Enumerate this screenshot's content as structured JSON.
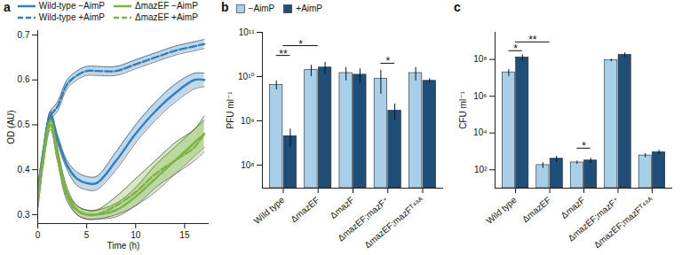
{
  "chart_data": [
    {
      "type": "line",
      "title": "a",
      "x_label": "Time (h)",
      "y_label": "OD (AU)",
      "x": [
        0,
        0.5,
        1.3,
        2,
        3,
        4,
        5,
        6,
        8,
        10,
        12,
        14,
        16,
        17
      ],
      "xlim": [
        0,
        17.5
      ],
      "xticks": [
        0,
        5,
        10,
        15
      ],
      "ylim": [
        0.28,
        0.71
      ],
      "yticks": [
        0.3,
        0.4,
        0.5,
        0.6,
        0.7
      ],
      "legend": "top",
      "series": [
        {
          "name": "Wild-type −AimP",
          "color": "#2f7fc1",
          "line_style": "solid",
          "values": [
            0.33,
            0.42,
            0.52,
            0.47,
            0.41,
            0.38,
            0.37,
            0.37,
            0.42,
            0.48,
            0.53,
            0.57,
            0.6,
            0.6
          ],
          "lower": [
            0.32,
            0.41,
            0.51,
            0.46,
            0.4,
            0.365,
            0.355,
            0.355,
            0.4,
            0.46,
            0.51,
            0.55,
            0.58,
            0.585
          ],
          "upper": [
            0.34,
            0.43,
            0.53,
            0.48,
            0.42,
            0.395,
            0.385,
            0.385,
            0.44,
            0.5,
            0.55,
            0.59,
            0.615,
            0.615
          ]
        },
        {
          "name": "Wild-type +AimP",
          "color": "#2f7fc1",
          "line_style": "dashed",
          "values": [
            0.35,
            0.43,
            0.52,
            0.54,
            0.59,
            0.61,
            0.62,
            0.62,
            0.62,
            0.635,
            0.65,
            0.665,
            0.675,
            0.68
          ],
          "lower": [
            0.34,
            0.42,
            0.51,
            0.53,
            0.58,
            0.6,
            0.61,
            0.61,
            0.61,
            0.625,
            0.64,
            0.655,
            0.665,
            0.67
          ],
          "upper": [
            0.36,
            0.44,
            0.53,
            0.55,
            0.6,
            0.62,
            0.63,
            0.63,
            0.63,
            0.645,
            0.66,
            0.675,
            0.685,
            0.69
          ]
        },
        {
          "name": "ΔmazEF −AimP",
          "color": "#7cb342",
          "line_style": "solid",
          "values": [
            0.33,
            0.42,
            0.51,
            0.44,
            0.35,
            0.31,
            0.3,
            0.3,
            0.31,
            0.34,
            0.38,
            0.42,
            0.46,
            0.48
          ],
          "lower": [
            0.32,
            0.41,
            0.5,
            0.43,
            0.34,
            0.3,
            0.29,
            0.29,
            0.295,
            0.32,
            0.35,
            0.39,
            0.43,
            0.45
          ],
          "upper": [
            0.34,
            0.43,
            0.52,
            0.45,
            0.36,
            0.32,
            0.31,
            0.31,
            0.325,
            0.36,
            0.41,
            0.45,
            0.49,
            0.51
          ]
        },
        {
          "name": "ΔmazEF +AimP",
          "color": "#7cb342",
          "line_style": "dashed",
          "values": [
            0.32,
            0.41,
            0.5,
            0.43,
            0.34,
            0.31,
            0.3,
            0.3,
            0.32,
            0.35,
            0.39,
            0.42,
            0.45,
            0.48
          ],
          "lower": [
            0.31,
            0.4,
            0.49,
            0.42,
            0.33,
            0.3,
            0.29,
            0.29,
            0.3,
            0.32,
            0.36,
            0.39,
            0.42,
            0.44
          ],
          "upper": [
            0.33,
            0.42,
            0.51,
            0.44,
            0.35,
            0.32,
            0.31,
            0.31,
            0.34,
            0.38,
            0.42,
            0.46,
            0.49,
            0.52
          ]
        }
      ]
    },
    {
      "type": "bar",
      "title": "b",
      "y_label": "PFU ml⁻¹",
      "log": "y",
      "categories": [
        "Wild type",
        "ΔmazEF",
        "ΔmazF",
        "ΔmazEF;mazF⁺",
        "ΔmazEF;mazFᵀ⁴⁸ᴬ"
      ],
      "ylim": [
        30000000,
        100000000000
      ],
      "yticks": [
        {
          "value": 100000000,
          "label": "10⁸"
        },
        {
          "value": 1000000000,
          "label": "10⁹"
        },
        {
          "value": 10000000000,
          "label": "10¹⁰"
        },
        {
          "value": 100000000000,
          "label": "10¹¹"
        }
      ],
      "legend": "top-left",
      "series": [
        {
          "name": "−AimP",
          "color": "#a8cfe8",
          "values": [
            6500000000,
            14000000000,
            12000000000,
            9000000000,
            12000000000
          ],
          "errors": [
            1500000000,
            4000000000,
            4000000000,
            5000000000,
            4000000000
          ]
        },
        {
          "name": "+AimP",
          "color": "#1f4e79",
          "values": [
            450000000,
            16000000000,
            11000000000,
            1700000000,
            8000000000
          ],
          "errors": [
            200000000,
            5000000000,
            4000000000,
            700000000,
            1000000000
          ]
        }
      ],
      "annotations": [
        {
          "text": "**",
          "from": "Wild type",
          "to": "Wild type",
          "y": 30000000000
        },
        {
          "text": "*",
          "from": "Wild type",
          "to": "ΔmazEF",
          "y": 50000000000
        },
        {
          "text": "*",
          "from": "ΔmazEF;mazF⁺",
          "to": "ΔmazEF;mazF⁺",
          "y": 20000000000
        }
      ]
    },
    {
      "type": "bar",
      "title": "c",
      "y_label": "CFU ml⁻¹",
      "log": "y",
      "categories": [
        "Wild type",
        "ΔmazEF",
        "ΔmazF",
        "ΔmazEF;mazF⁺",
        "ΔmazEF;mazFᵀ⁴⁸ᴬ"
      ],
      "ylim": [
        10,
        3000000000
      ],
      "yticks": [
        {
          "value": 100,
          "label": "10²"
        },
        {
          "value": 10000,
          "label": "10⁴"
        },
        {
          "value": 1000000,
          "label": "10⁶"
        },
        {
          "value": 100000000,
          "label": "10⁸"
        }
      ],
      "series": [
        {
          "name": "−AimP",
          "color": "#a8cfe8",
          "values": [
            20000000,
            180,
            250,
            90000000,
            600
          ],
          "errors": [
            8000000,
            60,
            50,
            15000000,
            150
          ]
        },
        {
          "name": "+AimP",
          "color": "#1f4e79",
          "values": [
            130000000,
            400,
            320,
            180000000,
            900
          ],
          "errors": [
            50000000,
            150,
            100,
            50000000,
            250
          ]
        }
      ],
      "annotations": [
        {
          "text": "*",
          "from": "Wild type",
          "to": "Wild type",
          "y": 300000000
        },
        {
          "text": "**",
          "from": "Wild type",
          "to": "ΔmazEF",
          "y": 900000000
        },
        {
          "text": "*",
          "from": "ΔmazF",
          "to": "ΔmazF",
          "y": 1500
        }
      ]
    }
  ]
}
